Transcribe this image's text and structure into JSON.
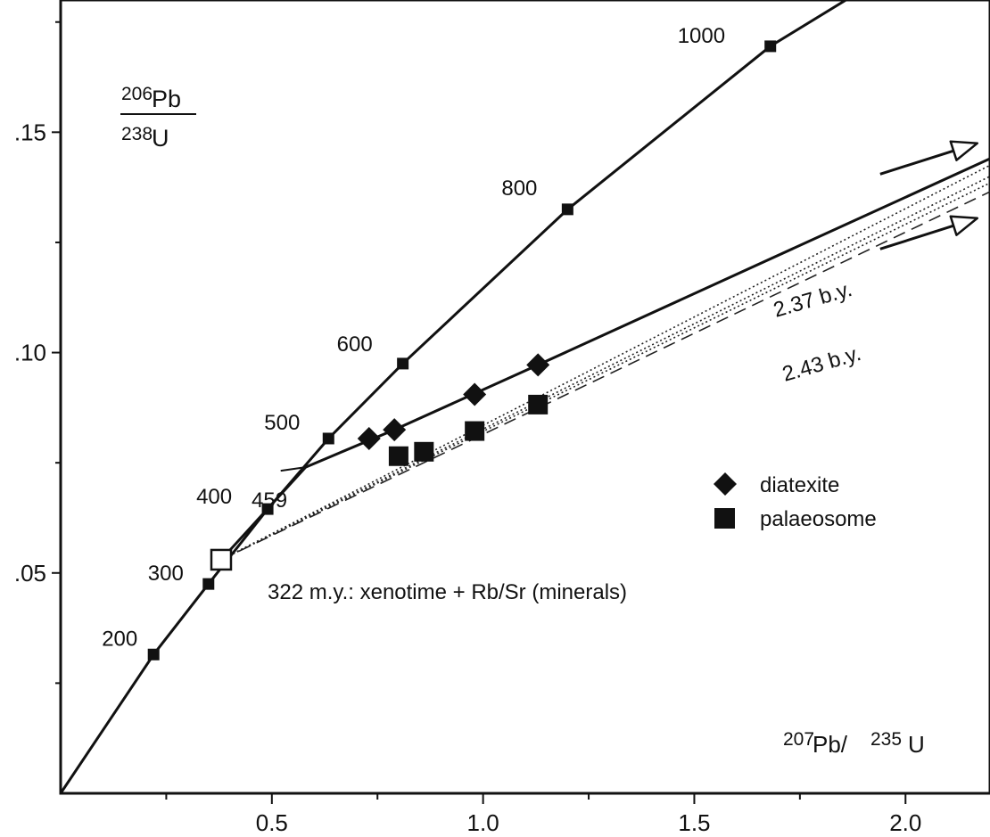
{
  "chart_data": {
    "type": "line",
    "title": "",
    "xlabel": {
      "sup1": "207",
      "base1": "Pb/",
      "sup2": "235",
      "base2": "U"
    },
    "ylabel": {
      "num_sup": "206",
      "num_base": "Pb",
      "den_sup": "238",
      "den_base": "U"
    },
    "xlim": [
      0.0,
      2.2
    ],
    "ylim": [
      0.0,
      0.18
    ],
    "xticks": [
      0.5,
      1.0,
      1.5,
      2.0
    ],
    "xtick_labels": [
      "0.5",
      "1.0",
      "1.5",
      "2.0"
    ],
    "yticks": [
      0.05,
      0.1,
      0.15
    ],
    "ytick_labels": [
      ".05",
      ".10",
      ".15"
    ],
    "concordia": {
      "points": [
        {
          "x": 0.0,
          "y": 0.0
        },
        {
          "x": 0.22,
          "y": 0.0315
        },
        {
          "x": 0.35,
          "y": 0.0475
        },
        {
          "x": 0.49,
          "y": 0.0645
        },
        {
          "x": 0.634,
          "y": 0.0805
        },
        {
          "x": 0.81,
          "y": 0.0975
        },
        {
          "x": 1.2,
          "y": 0.1325
        },
        {
          "x": 1.68,
          "y": 0.1695
        },
        {
          "x": 2.2,
          "y": 0.2
        }
      ],
      "age_ticks": [
        {
          "x": 0.22,
          "y": 0.0315,
          "label": "200"
        },
        {
          "x": 0.35,
          "y": 0.0475,
          "label": "300"
        },
        {
          "x": 0.49,
          "y": 0.0645,
          "label": "400"
        },
        {
          "x": 0.634,
          "y": 0.0805,
          "label": "500"
        },
        {
          "x": 0.81,
          "y": 0.0975,
          "label": "600"
        },
        {
          "x": 1.2,
          "y": 0.1325,
          "label": "800"
        },
        {
          "x": 1.68,
          "y": 0.1695,
          "label": "1000"
        }
      ]
    },
    "series": [
      {
        "name": "diatexite",
        "marker": "diamond",
        "points": [
          {
            "x": 0.73,
            "y": 0.0805
          },
          {
            "x": 0.79,
            "y": 0.0825
          },
          {
            "x": 0.98,
            "y": 0.0905
          },
          {
            "x": 1.13,
            "y": 0.0972
          }
        ]
      },
      {
        "name": "palaeosome",
        "marker": "square",
        "points": [
          {
            "x": 0.8,
            "y": 0.0765
          },
          {
            "x": 0.86,
            "y": 0.0775
          },
          {
            "x": 0.98,
            "y": 0.0822
          },
          {
            "x": 1.13,
            "y": 0.0882
          }
        ]
      }
    ],
    "lower_intercept": {
      "x": 0.38,
      "y": 0.053,
      "label": "322 m.y.: xenotime + Rb/Sr (minerals)"
    },
    "kink_point": {
      "x": 0.58,
      "y": 0.074,
      "label": "459"
    },
    "discordia_solid": {
      "points": [
        {
          "x": 0.38,
          "y": 0.053
        },
        {
          "x": 0.58,
          "y": 0.074
        },
        {
          "x": 0.79,
          "y": 0.0825
        },
        {
          "x": 1.13,
          "y": 0.0972
        },
        {
          "x": 2.2,
          "y": 0.144
        }
      ],
      "label": "2.37 b.y."
    },
    "discordia_dashed": {
      "points": [
        {
          "x": 0.38,
          "y": 0.053
        },
        {
          "x": 2.2,
          "y": 0.1365
        }
      ],
      "label": "2.43 b.y."
    },
    "dotted_lines": [
      [
        {
          "x": 0.38,
          "y": 0.053
        },
        {
          "x": 2.2,
          "y": 0.1425
        }
      ],
      [
        {
          "x": 0.38,
          "y": 0.053
        },
        {
          "x": 2.2,
          "y": 0.14
        }
      ],
      [
        {
          "x": 0.38,
          "y": 0.053
        },
        {
          "x": 2.2,
          "y": 0.1385
        }
      ]
    ],
    "arrows": [
      {
        "from": {
          "x": 1.94,
          "y": 0.1405
        },
        "to": {
          "x": 2.17,
          "y": 0.1475
        }
      },
      {
        "from": {
          "x": 1.94,
          "y": 0.1235
        },
        "to": {
          "x": 2.17,
          "y": 0.1305
        }
      }
    ],
    "legend": {
      "position": "right",
      "entries": [
        {
          "label": "diatexite",
          "marker": "diamond"
        },
        {
          "label": "palaeosome",
          "marker": "square"
        }
      ]
    },
    "grid": false
  }
}
